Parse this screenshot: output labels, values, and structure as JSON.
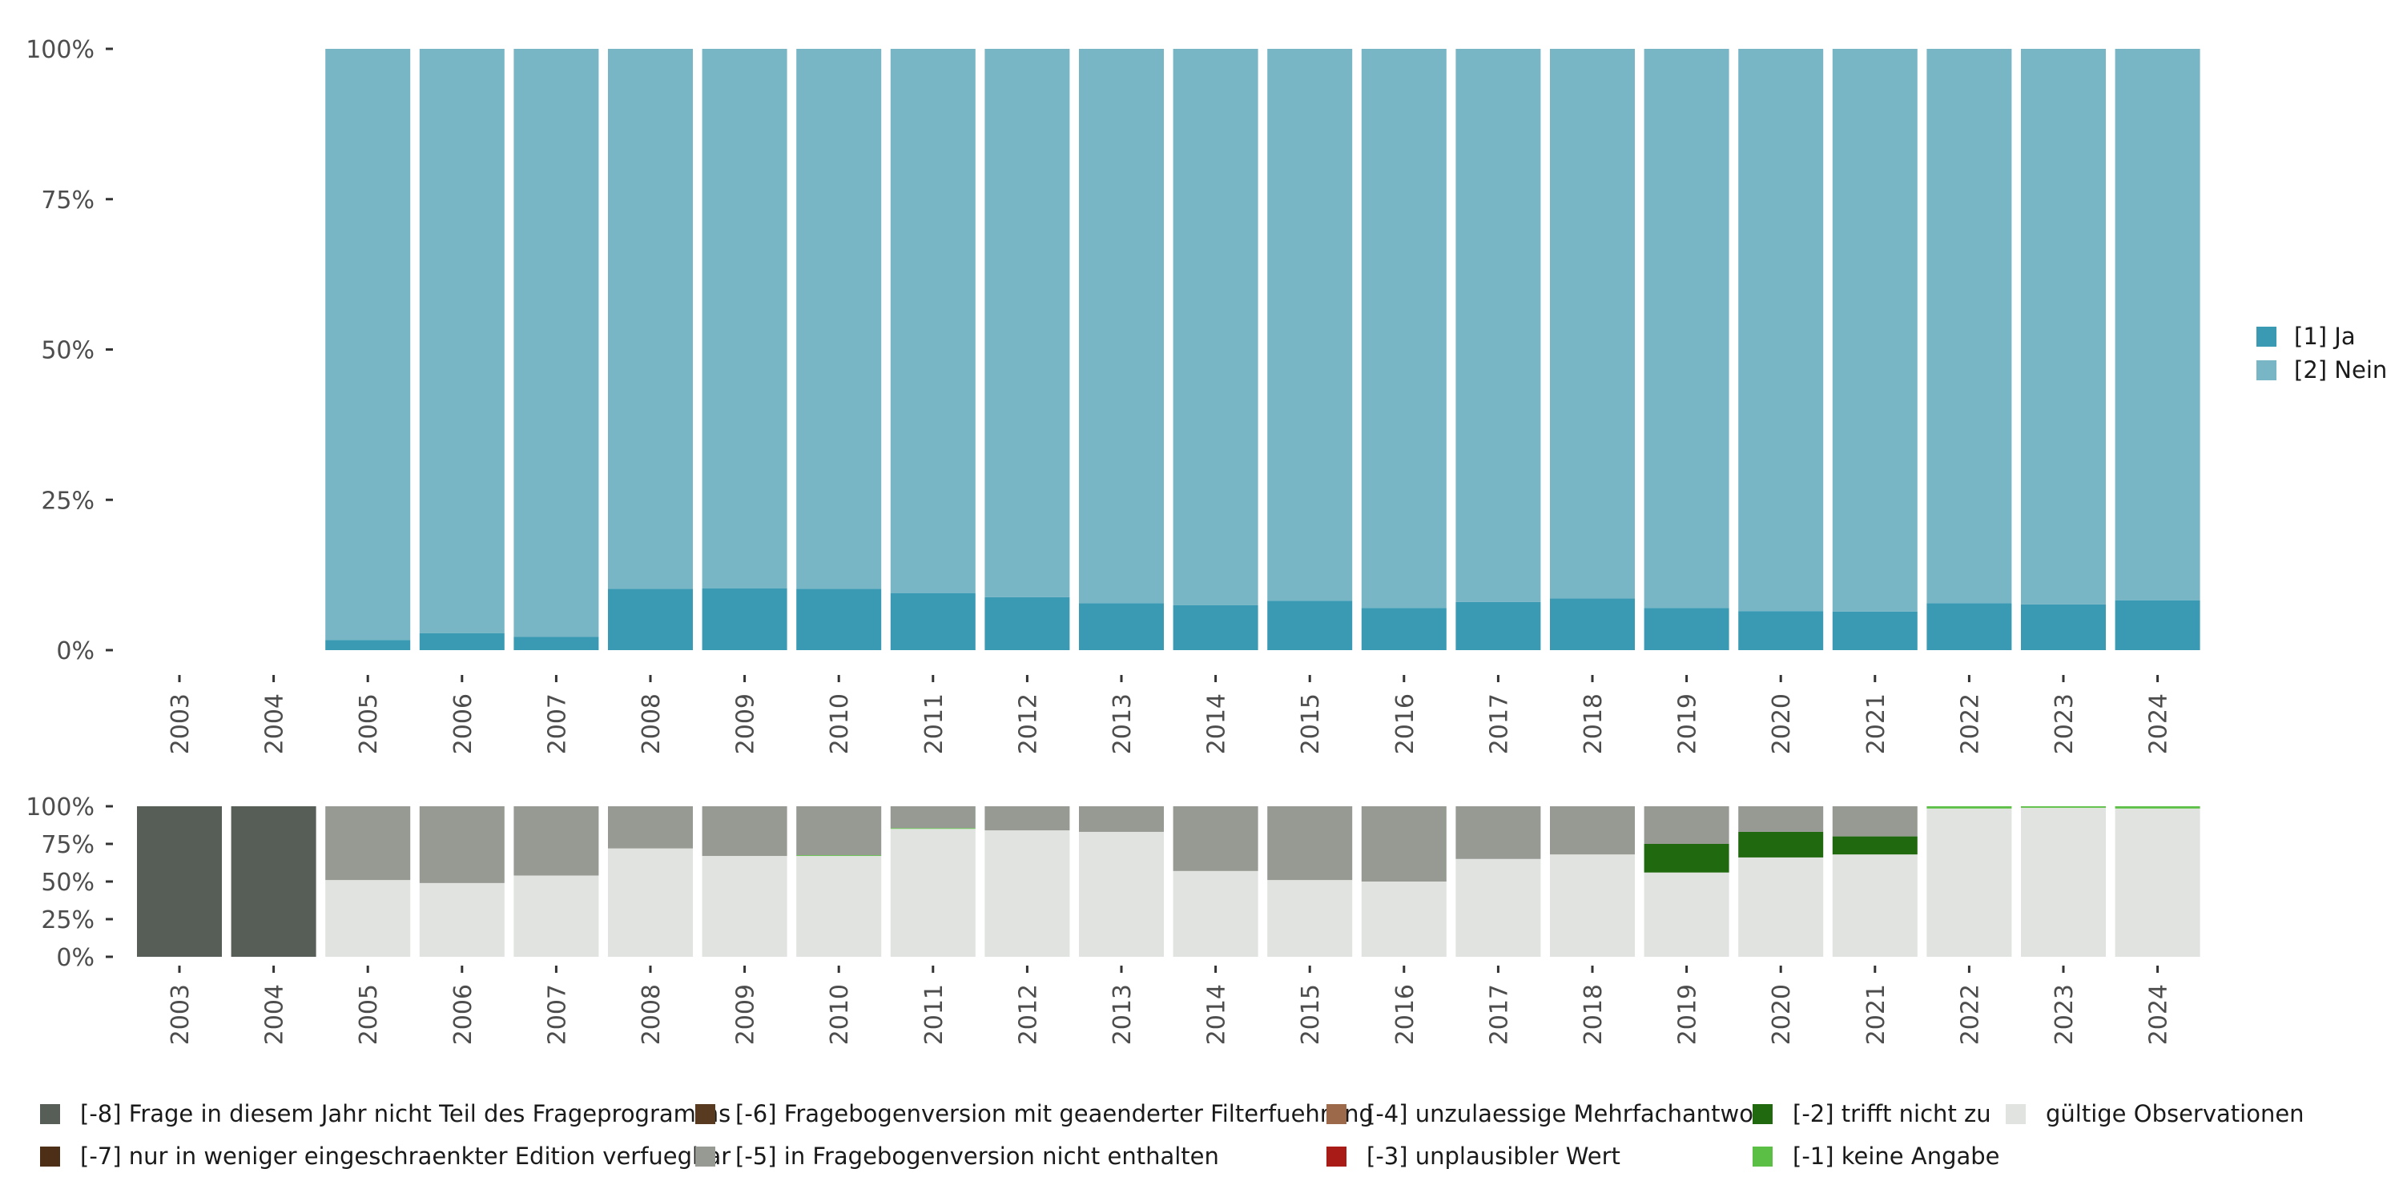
{
  "chart_data": [
    {
      "type": "bar",
      "stacked": true,
      "normalized": true,
      "categories": [
        "2003",
        "2004",
        "2005",
        "2006",
        "2007",
        "2008",
        "2009",
        "2010",
        "2011",
        "2012",
        "2013",
        "2014",
        "2015",
        "2016",
        "2017",
        "2018",
        "2019",
        "2020",
        "2021",
        "2022",
        "2023",
        "2024"
      ],
      "series": [
        {
          "name": "[1] Ja",
          "color": "#3a9ab4",
          "values": [
            null,
            null,
            1.7,
            2.8,
            2.2,
            10.2,
            10.3,
            10.2,
            9.5,
            8.8,
            7.8,
            7.5,
            8.2,
            7.0,
            8.0,
            8.6,
            7.0,
            6.5,
            6.4,
            7.8,
            7.6,
            8.3
          ]
        },
        {
          "name": "[2] Nein",
          "color": "#78b6c6",
          "values": [
            null,
            null,
            98.3,
            97.2,
            97.8,
            89.8,
            89.7,
            89.8,
            90.5,
            91.2,
            92.2,
            92.5,
            91.8,
            93.0,
            92.0,
            91.4,
            93.0,
            93.5,
            93.6,
            92.2,
            92.4,
            91.7
          ]
        }
      ],
      "y_ticks": [
        "0%",
        "25%",
        "50%",
        "75%",
        "100%"
      ],
      "ylim": [
        0,
        100
      ],
      "legend_position": "right"
    },
    {
      "type": "bar",
      "stacked": true,
      "normalized": true,
      "categories": [
        "2003",
        "2004",
        "2005",
        "2006",
        "2007",
        "2008",
        "2009",
        "2010",
        "2011",
        "2012",
        "2013",
        "2014",
        "2015",
        "2016",
        "2017",
        "2018",
        "2019",
        "2020",
        "2021",
        "2022",
        "2023",
        "2024"
      ],
      "series": [
        {
          "name": "gültige Observationen",
          "color": "#e0e3df",
          "values": [
            0,
            0,
            51,
            49,
            54,
            72,
            67,
            67,
            85,
            84,
            83,
            57,
            51,
            50,
            65,
            68,
            56,
            66,
            68,
            98.5,
            99,
            98.5
          ]
        },
        {
          "name": "[-1] keine Angabe",
          "color": "#5cbf45",
          "values": [
            0,
            0,
            0,
            0,
            0,
            0,
            0,
            0.5,
            0.5,
            0,
            0,
            0,
            0,
            0,
            0,
            0,
            0,
            0,
            0,
            1.5,
            1,
            1.5
          ]
        },
        {
          "name": "[-2] trifft nicht zu",
          "color": "#20690f",
          "values": [
            0,
            0,
            0,
            0,
            0,
            0,
            0,
            0,
            0,
            0,
            0,
            0,
            0,
            0,
            0,
            0,
            19,
            17,
            12,
            0,
            0,
            0
          ]
        },
        {
          "name": "[-3] unplausibler Wert",
          "color": "#a81b17",
          "values": [
            0,
            0,
            0,
            0,
            0,
            0,
            0,
            0,
            0,
            0,
            0,
            0,
            0,
            0,
            0,
            0,
            0,
            0,
            0,
            0,
            0,
            0
          ]
        },
        {
          "name": "[-4] unzulaessige Mehrfachantwort",
          "color": "#9c6a4a",
          "values": [
            0,
            0,
            0,
            0,
            0,
            0,
            0,
            0,
            0,
            0,
            0,
            0,
            0,
            0,
            0,
            0,
            0,
            0,
            0,
            0,
            0,
            0
          ]
        },
        {
          "name": "[-5] in Fragebogenversion nicht enthalten",
          "color": "#969a93",
          "values": [
            0,
            0,
            49,
            51,
            46,
            28,
            33,
            32.5,
            14.5,
            16,
            17,
            43,
            49,
            50,
            35,
            32,
            25,
            17,
            20,
            0,
            0,
            0
          ]
        },
        {
          "name": "[-6] Fragebogenversion mit geaenderter Filterfuehrung",
          "color": "#573a1f",
          "values": [
            0,
            0,
            0,
            0,
            0,
            0,
            0,
            0,
            0,
            0,
            0,
            0,
            0,
            0,
            0,
            0,
            0,
            0,
            0,
            0,
            0,
            0
          ]
        },
        {
          "name": "[-7] nur in weniger eingeschraenkter Edition verfuegbar",
          "color": "#4d2e17",
          "values": [
            0,
            0,
            0,
            0,
            0,
            0,
            0,
            0,
            0,
            0,
            0,
            0,
            0,
            0,
            0,
            0,
            0,
            0,
            0,
            0,
            0,
            0
          ]
        },
        {
          "name": "[-8] Frage in diesem Jahr nicht Teil des Frageprogramms",
          "color": "#575e57",
          "values": [
            100,
            100,
            0,
            0,
            0,
            0,
            0,
            0,
            0,
            0,
            0,
            0,
            0,
            0,
            0,
            0,
            0,
            0,
            0,
            0,
            0,
            0
          ]
        }
      ],
      "y_ticks": [
        "0%",
        "25%",
        "50%",
        "75%",
        "100%"
      ],
      "ylim": [
        0,
        100
      ],
      "legend_position": "bottom",
      "legend_order": [
        "[-8] Frage in diesem Jahr nicht Teil des Frageprogramms",
        "[-7] nur in weniger eingeschraenkter Edition verfuegbar",
        "[-6] Fragebogenversion mit geaenderter Filterfuehrung",
        "[-5] in Fragebogenversion nicht enthalten",
        "[-4] unzulaessige Mehrfachantwort",
        "[-3] unplausibler Wert",
        "[-2] trifft nicht zu",
        "[-1] keine Angabe",
        "gültige Observationen"
      ]
    }
  ]
}
